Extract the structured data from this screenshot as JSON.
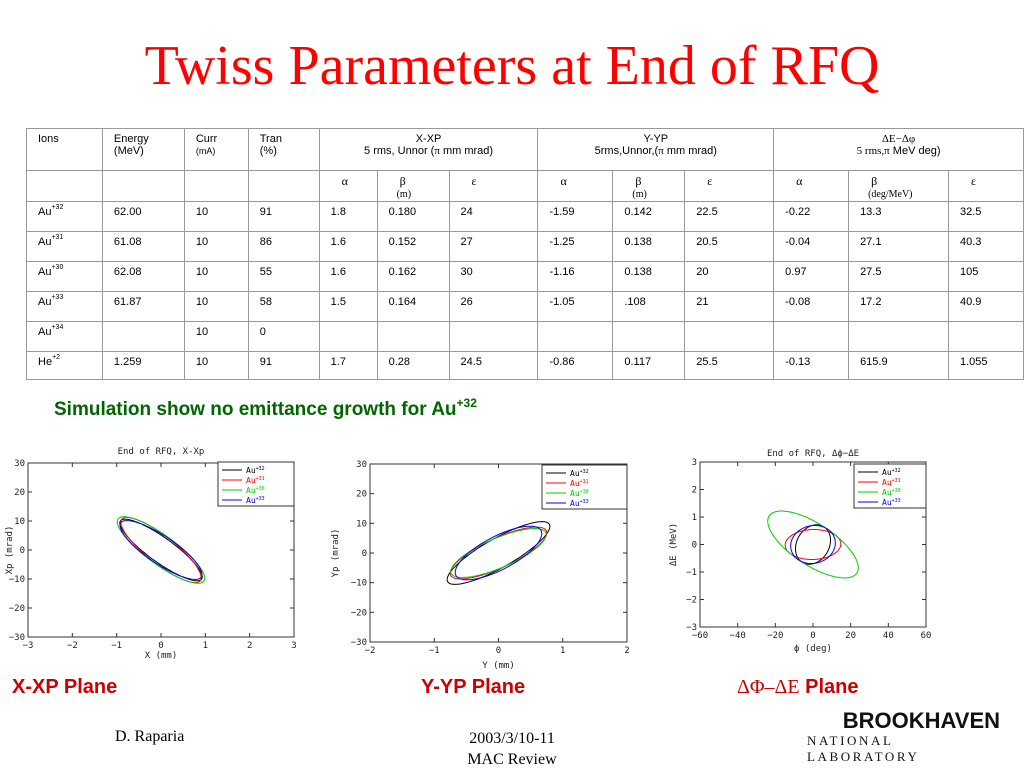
{
  "title": "Twiss Parameters at End of RFQ",
  "table": {
    "header1": {
      "ions": "Ions",
      "energy": "Energy",
      "energy_unit": "(MeV)",
      "curr": "Curr",
      "curr_unit": "(mA)",
      "tran": "Tran",
      "tran_unit": "(%)",
      "xxp": "X-XP",
      "xxp_sub_pre": "5 rms, Unnor (",
      "xxp_sub_post": " mm mrad)",
      "yyp": "Y-YP",
      "yyp_sub_pre": "5rms,Unnor,(",
      "yyp_sub_post": " mm mrad)",
      "de_a": "ΔE−Δφ",
      "de_sub_pre": "5 rms,",
      "de_sub_post": " MeV deg)"
    },
    "pi": "π",
    "header2": {
      "alpha": "α",
      "beta": "β",
      "eps": "ε",
      "beta_unit_x": "(m)",
      "beta_unit_y": "(m)",
      "beta_unit_z": "(deg/MeV)"
    },
    "rows": [
      {
        "ion": "Au",
        "charge": "+32",
        "energy": "62.00",
        "curr": "10",
        "tran": "91",
        "ax": "1.8",
        "bx": "0.180",
        "ex": "24",
        "ay": "-1.59",
        "by": "0.142",
        "ey": "22.5",
        "az": "-0.22",
        "bz": "13.3",
        "ez": "32.5"
      },
      {
        "ion": "Au",
        "charge": "+31",
        "energy": "61.08",
        "curr": "10",
        "tran": "86",
        "ax": "1.6",
        "bx": "0.152",
        "ex": "27",
        "ay": "-1.25",
        "by": "0.138",
        "ey": "20.5",
        "az": "-0.04",
        "bz": "27.1",
        "ez": "40.3"
      },
      {
        "ion": "Au",
        "charge": "+30",
        "energy": "62.08",
        "curr": "10",
        "tran": "55",
        "ax": "1.6",
        "bx": "0.162",
        "ex": "30",
        "ay": "-1.16",
        "by": "0.138",
        "ey": "20",
        "az": "0.97",
        "bz": "27.5",
        "ez": "105"
      },
      {
        "ion": "Au",
        "charge": "+33",
        "energy": "61.87",
        "curr": "10",
        "tran": "58",
        "ax": "1.5",
        "bx": "0.164",
        "ex": "26",
        "ay": "-1.05",
        "by": ".108",
        "ey": "21",
        "az": "-0.08",
        "bz": "17.2",
        "ez": "40.9"
      },
      {
        "ion": "Au",
        "charge": "+34",
        "energy": "",
        "curr": "10",
        "tran": "0",
        "ax": "",
        "bx": "",
        "ex": "",
        "ay": "",
        "by": "",
        "ey": "",
        "az": "",
        "bz": "",
        "ez": ""
      },
      {
        "ion": "He",
        "charge": "+2",
        "energy": "1.259",
        "curr": "10",
        "tran": "91",
        "ax": "1.7",
        "bx": "0.28",
        "ex": "24.5",
        "ay": "-0.86",
        "by": "0.117",
        "ey": "25.5",
        "az": "-0.13",
        "bz": "615.9",
        "ez": "1.055"
      }
    ]
  },
  "simulation_note": {
    "text": "Simulation show no emittance growth for Au",
    "sup": "+32"
  },
  "chart_data": [
    {
      "type": "scatter",
      "title": "End of RFQ, X-Xp",
      "xlabel": "X (mm)",
      "ylabel": "Xp (mrad)",
      "xlim": [
        -3,
        3
      ],
      "ylim": [
        -30,
        30
      ],
      "xticks": [
        "-3",
        "-2",
        "-1",
        "0",
        "1",
        "2",
        "3"
      ],
      "yticks": [
        "30",
        "20",
        "10",
        "0",
        "-10",
        "-20",
        "-30"
      ],
      "legend_position": "top-right",
      "series": [
        {
          "name": "Au+32",
          "ion": "Au",
          "charge": "+32",
          "color": "#000000",
          "alpha": 1.8,
          "beta": 0.18,
          "emittance": 24
        },
        {
          "name": "Au+31",
          "ion": "Au",
          "charge": "+31",
          "color": "#ff0000",
          "alpha": 1.6,
          "beta": 0.152,
          "emittance": 27
        },
        {
          "name": "Au+30",
          "ion": "Au",
          "charge": "+30",
          "color": "#00cc00",
          "alpha": 1.6,
          "beta": 0.162,
          "emittance": 30
        },
        {
          "name": "Au+33",
          "ion": "Au",
          "charge": "+33",
          "color": "#0000ff",
          "alpha": 1.5,
          "beta": 0.164,
          "emittance": 26
        }
      ]
    },
    {
      "type": "scatter",
      "title": "",
      "xlabel": "Y (mm)",
      "ylabel": "Yp (mrad)",
      "xlim": [
        -2,
        2
      ],
      "ylim": [
        -30,
        30
      ],
      "xticks": [
        "-2",
        "-1",
        "0",
        "1",
        "2"
      ],
      "yticks": [
        "30",
        "20",
        "10",
        "0",
        "-10",
        "-20",
        "-30"
      ],
      "legend_position": "top-right",
      "series": [
        {
          "name": "Au+32",
          "ion": "Au",
          "charge": "+32",
          "color": "#000000",
          "alpha": -1.59,
          "beta": 0.142,
          "emittance": 22.5
        },
        {
          "name": "Au+31",
          "ion": "Au",
          "charge": "+31",
          "color": "#ff0000",
          "alpha": -1.25,
          "beta": 0.138,
          "emittance": 20.5
        },
        {
          "name": "Au+30",
          "ion": "Au",
          "charge": "+30",
          "color": "#00cc00",
          "alpha": -1.16,
          "beta": 0.138,
          "emittance": 20
        },
        {
          "name": "Au+33",
          "ion": "Au",
          "charge": "+33",
          "color": "#0000ff",
          "alpha": -1.05,
          "beta": 0.108,
          "emittance": 21
        }
      ]
    },
    {
      "type": "scatter",
      "title": "End of RFQ, Δϕ−ΔE",
      "xlabel": "ϕ (deg)",
      "ylabel": "ΔE (MeV)",
      "xlim": [
        -60,
        60
      ],
      "ylim": [
        -3,
        3
      ],
      "xticks": [
        "-60",
        "-40",
        "-20",
        "0",
        "20",
        "40",
        "60"
      ],
      "yticks": [
        "3",
        "2",
        "1",
        "0",
        "-1",
        "-2",
        "-3"
      ],
      "legend_position": "top-right",
      "series": [
        {
          "name": "Au+32",
          "ion": "Au",
          "charge": "+32",
          "color": "#000000",
          "alpha": -0.22,
          "beta": 13.3,
          "emittance": 32.5
        },
        {
          "name": "Au+31",
          "ion": "Au",
          "charge": "+31",
          "color": "#ff0000",
          "alpha": -0.04,
          "beta": 27.1,
          "emittance": 40.3
        },
        {
          "name": "Au+30",
          "ion": "Au",
          "charge": "+30",
          "color": "#00cc00",
          "alpha": 0.97,
          "beta": 27.5,
          "emittance": 105
        },
        {
          "name": "Au+33",
          "ion": "Au",
          "charge": "+33",
          "color": "#0000ff",
          "alpha": -0.08,
          "beta": 17.2,
          "emittance": 40.9
        }
      ]
    }
  ],
  "planes": {
    "xxp": "X-XP Plane",
    "yyp": "Y-YP Plane",
    "phase_sym": "ΔΦ–ΔE",
    "phase_word": " Plane"
  },
  "footer": {
    "author": "D. Raparia",
    "date": "2003/3/10-11",
    "event": "MAC Review",
    "logo_line1_a": "BROOKHAVEN",
    "logo_line2": "NATIONAL LABORATORY"
  },
  "colors": {
    "title": "#ff0000",
    "note": "#006600",
    "plane_label": "#cc0000"
  }
}
